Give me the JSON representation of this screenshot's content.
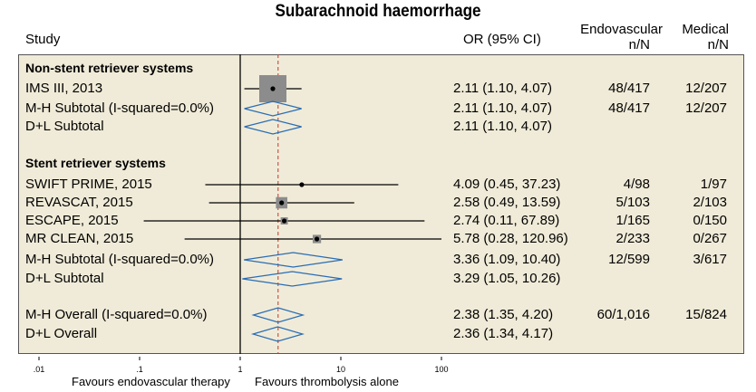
{
  "chart_data": {
    "type": "forest",
    "title": "Subarachnoid haemorrhage",
    "headers": {
      "study": "Study",
      "or": "OR (95% CI)",
      "endo": [
        "Endovascular",
        "n/N"
      ],
      "med": [
        "Medical",
        "n/N"
      ]
    },
    "xscale": "log",
    "xlim": [
      0.01,
      100
    ],
    "xticks": [
      ".01",
      ".1",
      "1",
      "10",
      "100"
    ],
    "xtick_values": [
      0.01,
      0.1,
      1,
      10,
      100
    ],
    "null_line": 1,
    "overall_line": 2.38,
    "favours_left": "Favours endovascular therapy",
    "favours_right": "Favours thrombolysis alone",
    "rows": [
      {
        "kind": "group",
        "label": "Non-stent retriever systems"
      },
      {
        "kind": "study",
        "label": "IMS III, 2013",
        "or": 2.11,
        "lo": 1.1,
        "hi": 4.07,
        "or_text": "2.11 (1.10, 4.07)",
        "endo": "48/417",
        "med": "12/207",
        "weight": 1.0
      },
      {
        "kind": "diamond",
        "label": "M-H Subtotal (I-squared=0.0%)",
        "or": 2.11,
        "lo": 1.1,
        "hi": 4.07,
        "or_text": "2.11 (1.10, 4.07)",
        "endo": "48/417",
        "med": "12/207"
      },
      {
        "kind": "diamond",
        "label": "D+L Subtotal",
        "or": 2.11,
        "lo": 1.1,
        "hi": 4.07,
        "or_text": "2.11 (1.10, 4.07)",
        "endo": "",
        "med": ""
      },
      {
        "kind": "blank"
      },
      {
        "kind": "group",
        "label": "Stent retriever systems"
      },
      {
        "kind": "study",
        "label": "SWIFT PRIME, 2015",
        "or": 4.09,
        "lo": 0.45,
        "hi": 37.23,
        "or_text": "4.09 (0.45, 37.23)",
        "endo": "4/98",
        "med": "1/97",
        "weight": 0.0
      },
      {
        "kind": "study",
        "label": "REVASCAT, 2015",
        "or": 2.58,
        "lo": 0.49,
        "hi": 13.59,
        "or_text": "2.58 (0.49, 13.59)",
        "endo": "5/103",
        "med": "2/103",
        "weight": 0.33
      },
      {
        "kind": "study",
        "label": "ESCAPE, 2015",
        "or": 2.74,
        "lo": 0.11,
        "hi": 67.89,
        "or_text": "2.74 (0.11, 67.89)",
        "endo": "1/165",
        "med": "0/150",
        "weight": 0.15
      },
      {
        "kind": "study",
        "label": "MR CLEAN, 2015",
        "or": 5.78,
        "lo": 0.28,
        "hi": 120.96,
        "or_text": "5.78 (0.28, 120.96)",
        "endo": "2/233",
        "med": "0/267",
        "weight": 0.2
      },
      {
        "kind": "diamond",
        "label": "M-H Subtotal (I-squared=0.0%)",
        "or": 3.36,
        "lo": 1.09,
        "hi": 10.4,
        "or_text": "3.36 (1.09, 10.40)",
        "endo": "12/599",
        "med": "3/617"
      },
      {
        "kind": "diamond",
        "label": "D+L Subtotal",
        "or": 3.29,
        "lo": 1.05,
        "hi": 10.26,
        "or_text": "3.29 (1.05, 10.26)",
        "endo": "",
        "med": ""
      },
      {
        "kind": "blank"
      },
      {
        "kind": "diamond",
        "label": "M-H Overall (I-squared=0.0%)",
        "or": 2.38,
        "lo": 1.35,
        "hi": 4.2,
        "or_text": "2.38 (1.35, 4.20)",
        "endo": "60/1,016",
        "med": "15/824"
      },
      {
        "kind": "diamond",
        "label": "D+L Overall",
        "or": 2.36,
        "lo": 1.34,
        "hi": 4.17,
        "or_text": "2.36 (1.34, 4.17)",
        "endo": "",
        "med": ""
      }
    ],
    "colors": {
      "panel": "#f0ebd8",
      "diamond": "#2a6db5",
      "box": "#8c8c8c",
      "overall_line": "#c0392b"
    }
  }
}
